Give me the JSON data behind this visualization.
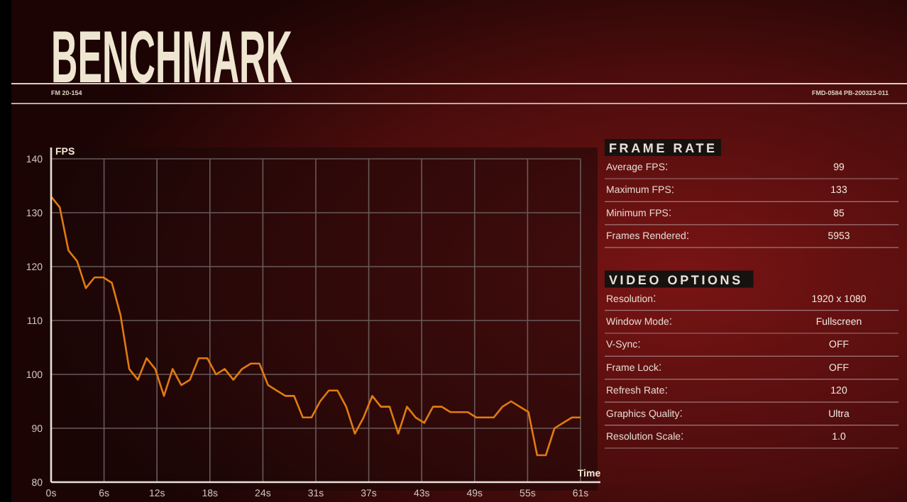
{
  "chart_data": [
    {
      "type": "line",
      "title": "BENCHMARK",
      "annotations": [
        "FM 20-154",
        "FMD-0584 PB-200323-011"
      ],
      "ylabel": "FPS",
      "xlabel": "Time",
      "grid": true,
      "marker": "none",
      "line_style": "solid",
      "xlim": [
        0,
        61
      ],
      "xticks": [
        {
          "value": 0,
          "label": "0s"
        },
        {
          "value": 6.1,
          "label": "6s"
        },
        {
          "value": 12.2,
          "label": "12s"
        },
        {
          "value": 18.3,
          "label": "18s"
        },
        {
          "value": 24.4,
          "label": "24s"
        },
        {
          "value": 30.5,
          "label": "31s"
        },
        {
          "value": 36.6,
          "label": "37s"
        },
        {
          "value": 42.7,
          "label": "43s"
        },
        {
          "value": 48.8,
          "label": "49s"
        },
        {
          "value": 54.9,
          "label": "55s"
        },
        {
          "value": 61,
          "label": "61s"
        }
      ],
      "ylim": [
        80,
        140
      ],
      "yticks": [
        80,
        90,
        100,
        110,
        120,
        130,
        140
      ],
      "x": [
        0,
        1,
        2,
        3,
        4,
        5,
        6,
        7,
        8,
        9,
        10,
        11,
        12,
        13,
        14,
        15,
        16,
        17,
        18,
        19,
        20,
        21,
        22,
        23,
        24,
        25,
        26,
        27,
        28,
        29,
        30,
        31,
        32,
        33,
        34,
        35,
        36,
        37,
        38,
        39,
        40,
        41,
        42,
        43,
        44,
        45,
        46,
        47,
        48,
        49,
        50,
        51,
        52,
        53,
        54,
        55,
        56,
        57,
        58,
        59,
        60,
        61
      ],
      "series": [
        {
          "color": "#e07b10",
          "values": [
            133,
            131,
            123,
            121,
            116,
            118,
            118,
            117,
            111,
            101,
            99,
            103,
            101,
            96,
            101,
            98,
            99,
            103,
            103,
            100,
            101,
            99,
            101,
            102,
            102,
            98,
            97,
            96,
            96,
            92,
            92,
            95,
            97,
            97,
            94,
            89,
            92,
            96,
            94,
            94,
            89,
            94,
            92,
            91,
            94,
            94,
            93,
            93,
            93,
            92,
            92,
            92,
            94,
            95,
            94,
            93,
            85,
            85,
            90,
            91,
            92,
            92
          ]
        }
      ]
    },
    {
      "type": "other",
      "title": "FRAME RATE",
      "categories": [
        "Average FPS",
        "Maximum FPS",
        "Minimum FPS",
        "Frames Rendered"
      ],
      "value_labels": [
        "99",
        "133",
        "85",
        "5953"
      ]
    },
    {
      "type": "other",
      "title": "VIDEO OPTIONS",
      "categories": [
        "Resolution",
        "Window Mode",
        "V-Sync",
        "Frame Lock",
        "Refresh Rate",
        "Graphics Quality",
        "Resolution Scale"
      ],
      "value_labels": [
        "1920 x 1080",
        "Fullscreen",
        "OFF",
        "OFF",
        "120",
        "Ultra",
        "1.0"
      ]
    }
  ]
}
